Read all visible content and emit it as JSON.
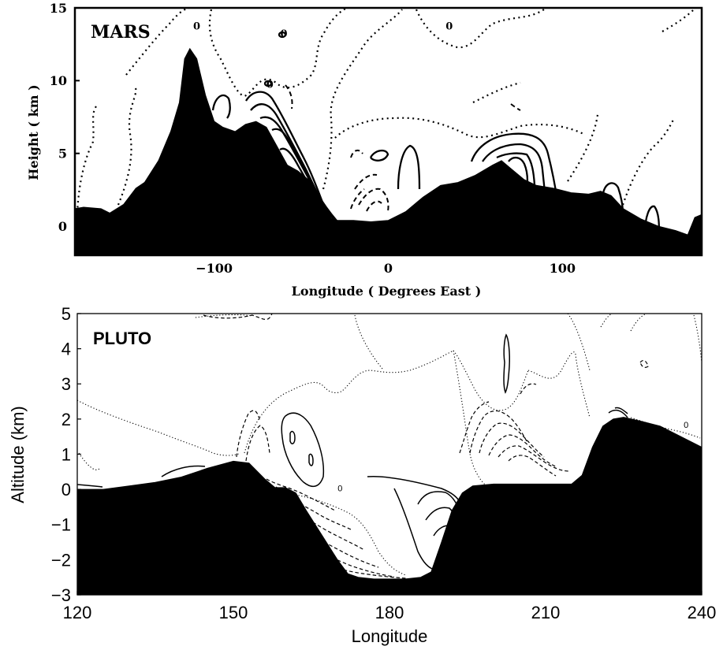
{
  "chart_data": [
    {
      "type": "contour",
      "panel_label": "MARS",
      "xlabel": "Longitude ( Degrees East )",
      "ylabel": "Height ( km )",
      "xlim": [
        -180,
        180
      ],
      "ylim": [
        -2,
        15
      ],
      "xticks": [
        -100,
        0,
        100
      ],
      "yticks": [
        0,
        5,
        10,
        15
      ],
      "xtick_labels": [
        "−100",
        "0",
        "100"
      ],
      "ytick_labels": [
        "0",
        "5",
        "10",
        "15"
      ],
      "contour_labels": [
        {
          "text": "0",
          "x": -110,
          "y": 13.5
        },
        {
          "text": "0",
          "x": -60,
          "y": 13.0
        },
        {
          "text": "0",
          "x": 35,
          "y": 13.5
        },
        {
          "text": "0",
          "x": -68,
          "y": 9.5
        }
      ],
      "terrain": {
        "x": [
          -180,
          -175,
          -165,
          -160,
          -152,
          -145,
          -140,
          -132,
          -125,
          -120,
          -117,
          -114,
          -110,
          -105,
          -100,
          -95,
          -88,
          -82,
          -76,
          -70,
          -64,
          -58,
          -52,
          -46,
          -40,
          -35,
          -30,
          -20,
          -10,
          0,
          10,
          20,
          30,
          40,
          50,
          60,
          65,
          70,
          78,
          85,
          95,
          105,
          115,
          122,
          128,
          135,
          145,
          155,
          165,
          172,
          176,
          180
        ],
        "y": [
          1.2,
          1.3,
          1.2,
          0.9,
          1.5,
          2.6,
          3.0,
          4.5,
          6.5,
          8.5,
          11.5,
          12.2,
          11.5,
          9.0,
          7.2,
          6.8,
          6.5,
          7.0,
          7.2,
          6.8,
          5.5,
          4.2,
          3.8,
          3.2,
          2.2,
          0.6,
          0.4,
          0.4,
          0.3,
          0.4,
          1.0,
          2.0,
          2.8,
          3.0,
          3.5,
          4.2,
          4.5,
          4.0,
          3.2,
          2.8,
          2.6,
          2.3,
          2.2,
          2.4,
          2.1,
          1.2,
          0.5,
          0.0,
          -0.3,
          -0.6,
          0.6,
          0.8
        ]
      }
    },
    {
      "type": "contour",
      "panel_label": "PLUTO",
      "xlabel": "Longitude",
      "ylabel": "Altitude (km)",
      "xlim": [
        120,
        240
      ],
      "ylim": [
        -3,
        5
      ],
      "xticks": [
        120,
        150,
        180,
        210,
        240
      ],
      "yticks": [
        -3,
        -2,
        -1,
        0,
        1,
        2,
        3,
        4,
        5
      ],
      "xtick_labels": [
        "120",
        "150",
        "180",
        "210",
        "240"
      ],
      "ytick_labels": [
        "−3",
        "−2",
        "−1",
        "0",
        "1",
        "2",
        "3",
        "4",
        "5"
      ],
      "contour_labels": [
        {
          "text": "0",
          "x": 170.5,
          "y": -0.05
        },
        {
          "text": "0",
          "x": 237,
          "y": 1.75
        }
      ],
      "terrain": {
        "x": [
          120,
          125,
          130,
          135,
          140,
          145,
          150,
          153,
          156,
          158,
          160,
          162,
          164,
          167,
          170,
          172,
          174,
          177,
          180,
          183,
          186,
          188,
          190,
          192,
          194,
          196,
          200,
          205,
          210,
          215,
          217,
          219,
          221,
          223,
          225,
          228,
          232,
          236,
          240
        ],
        "y": [
          0.0,
          0.0,
          0.1,
          0.2,
          0.35,
          0.6,
          0.8,
          0.75,
          0.3,
          0.05,
          0.05,
          -0.1,
          -0.6,
          -1.3,
          -2.0,
          -2.4,
          -2.5,
          -2.55,
          -2.55,
          -2.55,
          -2.5,
          -2.35,
          -1.5,
          -0.6,
          -0.1,
          0.1,
          0.15,
          0.15,
          0.15,
          0.15,
          0.4,
          1.2,
          1.8,
          2.0,
          2.05,
          1.95,
          1.8,
          1.5,
          1.2
        ]
      }
    }
  ]
}
